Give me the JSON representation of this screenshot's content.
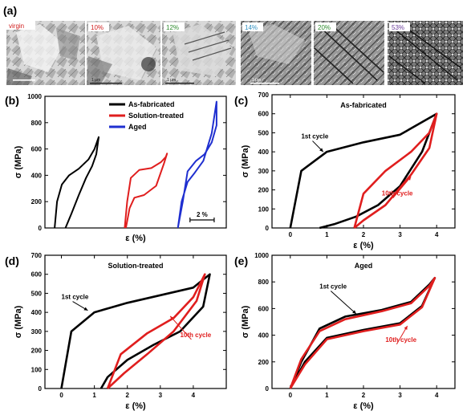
{
  "figure": {
    "panel_labels": [
      "(a)",
      "(b)",
      "(c)",
      "(d)",
      "(e)"
    ],
    "micrographs": {
      "labels": [
        "virgin",
        "10%",
        "12%",
        "14%",
        "20%",
        "53%"
      ],
      "label_colors": [
        "#d02020",
        "#d02020",
        "#2e8b2e",
        "#2f8fbf",
        "#2e8b2e",
        "#6a3d9a"
      ],
      "scale_bars": [
        "1 μm",
        "1 μm",
        "1 μm"
      ]
    },
    "colors": {
      "black": "#000000",
      "red": "#e01e1e",
      "blue": "#1f2fd0"
    }
  },
  "chart_data": [
    {
      "panel": "(b)",
      "type": "line",
      "title": "",
      "xlabel": "ε (%)",
      "ylabel": "σ (MPa)",
      "ylim": [
        0,
        1000
      ],
      "yticks": [
        0,
        200,
        400,
        600,
        800,
        1000
      ],
      "x_scale_bar": "2 %",
      "legend": {
        "position": "top-center",
        "entries": [
          "As-fabricated",
          "Solution-treated",
          "Aged"
        ]
      },
      "series": [
        {
          "name": "As-fabricated",
          "color": "#000000",
          "x": [
            0,
            0.2,
            0.6,
            1.2,
            2.0,
            2.8,
            3.3,
            3.65,
            3.45,
            3.1,
            2.6,
            2.0,
            1.4,
            0.9
          ],
          "y": [
            0,
            200,
            330,
            400,
            450,
            520,
            600,
            690,
            560,
            470,
            380,
            250,
            110,
            0
          ]
        },
        {
          "name": "Solution-treated",
          "color": "#e01e1e",
          "x": [
            5.8,
            6.0,
            6.3,
            7.0,
            8.0,
            8.8,
            9.2,
            9.3,
            9.05,
            8.4,
            7.4,
            6.6,
            6.2,
            5.9
          ],
          "y": [
            0,
            200,
            380,
            440,
            455,
            500,
            540,
            565,
            490,
            320,
            250,
            230,
            150,
            0
          ]
        },
        {
          "name": "Aged",
          "color": "#1f2fd0",
          "x": [
            10.2,
            10.6,
            11.0,
            11.7,
            12.4,
            13.0,
            13.4,
            13.4,
            13.0,
            12.3,
            11.6,
            11.0,
            10.5,
            10.2
          ],
          "y": [
            0,
            200,
            430,
            510,
            560,
            650,
            780,
            960,
            720,
            510,
            420,
            350,
            200,
            0
          ]
        }
      ]
    },
    {
      "panel": "(c)",
      "type": "line",
      "title": "As-fabricated",
      "xlabel": "ε (%)",
      "ylabel": "σ (MPa)",
      "xlim": [
        -0.5,
        4.5
      ],
      "ylim": [
        0,
        700
      ],
      "xticks": [
        0,
        1,
        2,
        3,
        4
      ],
      "yticks": [
        0,
        100,
        200,
        300,
        400,
        500,
        600,
        700
      ],
      "annotations": [
        "1st cycle",
        "10th cycle"
      ],
      "series": [
        {
          "name": "1st cycle",
          "color": "#000000",
          "x": [
            0,
            0.3,
            1.0,
            2.0,
            3.0,
            4.0,
            3.6,
            3.0,
            2.4,
            1.8,
            1.2,
            0.8
          ],
          "y": [
            0,
            300,
            400,
            450,
            490,
            600,
            400,
            220,
            120,
            60,
            20,
            0
          ]
        },
        {
          "name": "10th cycle",
          "color": "#e01e1e",
          "x": [
            1.75,
            2.0,
            2.6,
            3.3,
            3.8,
            4.0,
            3.8,
            3.3,
            2.6,
            2.0,
            1.75
          ],
          "y": [
            0,
            180,
            300,
            400,
            500,
            600,
            420,
            280,
            120,
            40,
            0
          ]
        }
      ]
    },
    {
      "panel": "(d)",
      "type": "line",
      "title": "Solution-treated",
      "xlabel": "ε (%)",
      "ylabel": "σ (MPa)",
      "xlim": [
        -0.5,
        5
      ],
      "ylim": [
        0,
        700
      ],
      "xticks": [
        0,
        1,
        2,
        3,
        4
      ],
      "yticks": [
        0,
        100,
        200,
        300,
        400,
        500,
        600,
        700
      ],
      "annotations": [
        "1st cycle",
        "10th cycle"
      ],
      "series": [
        {
          "name": "1st cycle",
          "color": "#000000",
          "x": [
            0,
            0.3,
            1.0,
            2.0,
            3.0,
            4.0,
            4.5,
            4.3,
            3.6,
            2.8,
            2.0,
            1.4,
            1.2
          ],
          "y": [
            0,
            300,
            400,
            450,
            490,
            530,
            600,
            430,
            300,
            230,
            150,
            60,
            0
          ]
        },
        {
          "name": "10th cycle",
          "color": "#e01e1e",
          "x": [
            1.4,
            1.8,
            2.6,
            3.4,
            4.0,
            4.35,
            4.1,
            3.4,
            2.6,
            1.9,
            1.4
          ],
          "y": [
            0,
            180,
            290,
            370,
            480,
            600,
            460,
            300,
            180,
            80,
            0
          ]
        }
      ]
    },
    {
      "panel": "(e)",
      "type": "line",
      "title": "Aged",
      "xlabel": "ε (%)",
      "ylabel": "σ (MPa)",
      "xlim": [
        -0.5,
        4.5
      ],
      "ylim": [
        0,
        1000
      ],
      "xticks": [
        0,
        1,
        2,
        3,
        4
      ],
      "yticks": [
        0,
        200,
        400,
        600,
        800,
        1000
      ],
      "annotations": [
        "1st cycle",
        "10th cycle"
      ],
      "series": [
        {
          "name": "1st cycle",
          "color": "#000000",
          "x": [
            0,
            0.3,
            0.8,
            1.5,
            2.5,
            3.3,
            3.8,
            3.95,
            3.6,
            3.0,
            2.0,
            1.0,
            0.4,
            0
          ],
          "y": [
            0,
            200,
            450,
            540,
            590,
            650,
            780,
            830,
            620,
            490,
            440,
            380,
            200,
            0
          ]
        },
        {
          "name": "10th cycle",
          "color": "#e01e1e",
          "x": [
            0,
            0.3,
            0.8,
            1.5,
            2.5,
            3.3,
            3.8,
            3.95,
            3.6,
            3.0,
            2.0,
            1.0,
            0.4,
            0
          ],
          "y": [
            0,
            220,
            430,
            520,
            580,
            640,
            770,
            830,
            610,
            480,
            430,
            370,
            180,
            0
          ]
        }
      ]
    }
  ]
}
